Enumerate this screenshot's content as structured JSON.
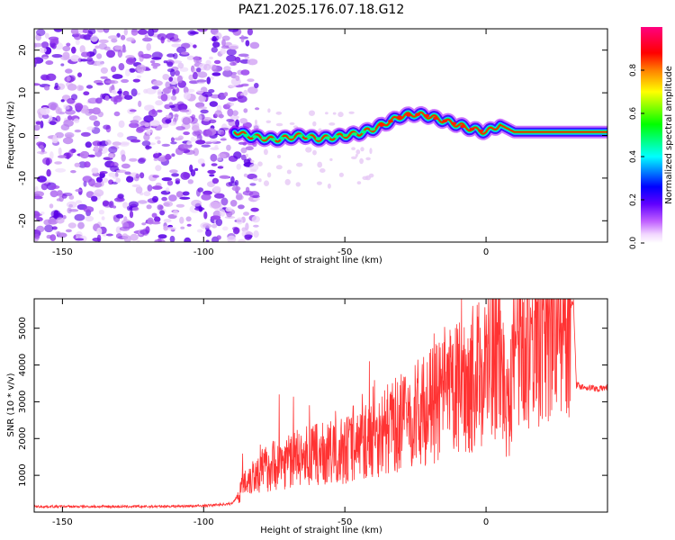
{
  "title": "PAZ1.2025.176.07.18.G12",
  "chart_data": [
    {
      "type": "heatmap",
      "xlabel": "Height of straight line (km)",
      "ylabel": "Frequency (Hz)",
      "xlim": [
        -160,
        43
      ],
      "ylim": [
        -25,
        25
      ],
      "xticks": [
        -150,
        -100,
        -50,
        0
      ],
      "yticks": [
        -20,
        -10,
        0,
        10,
        20
      ],
      "colorbar": {
        "label": "Normalized spectral amplitude",
        "range": [
          0.0,
          1.0
        ],
        "ticks": [
          "0.0",
          "0.2",
          "0.4",
          "0.6",
          "0.8"
        ]
      },
      "ridge": {
        "x": [
          -89,
          -85,
          -80,
          -75,
          -70,
          -65,
          -60,
          -55,
          -50,
          -45,
          -40,
          -35,
          -30,
          -25,
          -20,
          -15,
          -10,
          -5,
          0,
          5,
          10,
          20,
          30,
          43
        ],
        "frequency": [
          1.0,
          0.0,
          -0.5,
          -1.0,
          -0.5,
          0.0,
          -0.8,
          -0.5,
          0.0,
          0.5,
          1.5,
          3.0,
          4.5,
          5.0,
          4.5,
          3.5,
          2.5,
          1.5,
          0.8,
          2.5,
          0.8,
          0.8,
          0.8,
          0.8
        ]
      },
      "noise_region": {
        "x": [
          -160,
          -85
        ],
        "frequency": [
          -25,
          25
        ]
      },
      "colorscale": [
        "#ffffff",
        "#e6c8f5",
        "#a000ff",
        "#0000ff",
        "#00ffff",
        "#00ff00",
        "#ffff00",
        "#ff8000",
        "#ff0000",
        "#ff00ff"
      ]
    },
    {
      "type": "line",
      "xlabel": "Height of straight line (km)",
      "ylabel": "SNR (10 * v/v)",
      "xlim": [
        -160,
        43
      ],
      "ylim": [
        0,
        5800
      ],
      "xticks": [
        -150,
        -100,
        -50,
        0
      ],
      "yticks": [
        1000,
        2000,
        3000,
        4000,
        5000
      ],
      "color": "#ff3333",
      "series": [
        {
          "x": [
            -160,
            -140,
            -120,
            -100,
            -90,
            -88,
            -85,
            -80,
            -75,
            -70,
            -65,
            -60,
            -55,
            -50,
            -45,
            -40,
            -35,
            -30,
            -25,
            -20,
            -15,
            -10,
            -5,
            0,
            5,
            7,
            8,
            10,
            15,
            20,
            25,
            30,
            31,
            32,
            35,
            40,
            43
          ],
          "y": [
            150,
            150,
            150,
            170,
            230,
            450,
            900,
            1100,
            1300,
            1400,
            1500,
            1550,
            1600,
            1700,
            1850,
            2000,
            2250,
            2450,
            2650,
            2850,
            3100,
            3350,
            3600,
            3950,
            4300,
            3000,
            3200,
            4800,
            5000,
            5200,
            5400,
            5600,
            5700,
            3450,
            3400,
            3350,
            3400
          ]
        }
      ]
    }
  ]
}
